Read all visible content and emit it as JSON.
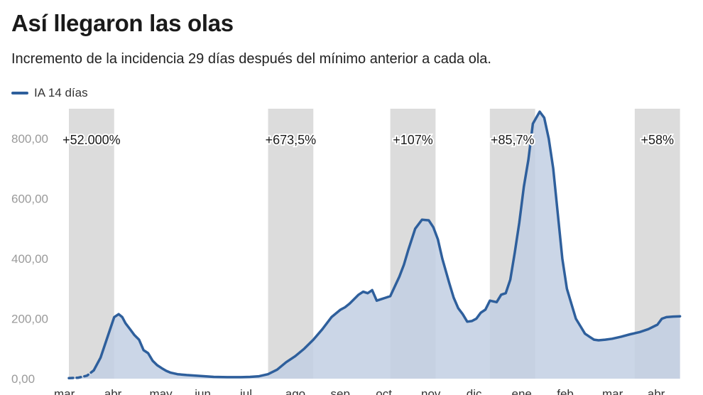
{
  "title": "Así llegaron las olas",
  "subtitle": "Incremento de la incidencia 29 días después del mínimo anterior a cada ola.",
  "colors": {
    "line": "#2e5f9c",
    "area": "#c2cfe3",
    "band": "#dcdcdc"
  },
  "chart_data": {
    "type": "area",
    "xlabel": "",
    "ylabel": "",
    "legend": [
      {
        "name": "IA 14 días",
        "position": "top-left"
      }
    ],
    "ylim": [
      0,
      900
    ],
    "yticks": [
      0,
      200,
      400,
      600,
      800
    ],
    "ytick_labels": [
      "0,00",
      "200,00",
      "400,00",
      "600,00",
      "800,00"
    ],
    "x_months": [
      "mar",
      "abr",
      "may",
      "jun",
      "jul",
      "ago",
      "sep",
      "oct",
      "nov",
      "dic",
      "ene",
      "feb",
      "mar",
      "abr"
    ],
    "grid": false,
    "waves": [
      {
        "start_month": 0.0,
        "end_month": 1.0,
        "label": "+52.000%"
      },
      {
        "start_month": 4.4,
        "end_month": 5.4,
        "label": "+673,5%"
      },
      {
        "start_month": 7.1,
        "end_month": 8.1,
        "label": "+107%"
      },
      {
        "start_month": 9.3,
        "end_month": 10.3,
        "label": "+85,7%"
      },
      {
        "start_month": 12.5,
        "end_month": 13.5,
        "label": "+58%"
      }
    ],
    "series": [
      {
        "name": "IA 14 días",
        "dashed_until_month": 0.45,
        "x_month": [
          0.0,
          0.2,
          0.4,
          0.55,
          0.7,
          0.8,
          0.9,
          1.0,
          1.1,
          1.18,
          1.25,
          1.35,
          1.45,
          1.55,
          1.65,
          1.75,
          1.85,
          1.95,
          2.05,
          2.15,
          2.25,
          2.4,
          2.6,
          2.8,
          3.0,
          3.2,
          3.5,
          3.8,
          4.0,
          4.2,
          4.4,
          4.6,
          4.8,
          5.0,
          5.2,
          5.4,
          5.6,
          5.8,
          6.0,
          6.1,
          6.2,
          6.3,
          6.4,
          6.5,
          6.6,
          6.7,
          6.8,
          6.9,
          7.0,
          7.1,
          7.3,
          7.4,
          7.5,
          7.65,
          7.8,
          7.95,
          8.05,
          8.15,
          8.25,
          8.4,
          8.5,
          8.6,
          8.7,
          8.8,
          8.9,
          9.0,
          9.1,
          9.2,
          9.3,
          9.45,
          9.55,
          9.65,
          9.75,
          9.85,
          9.95,
          10.05,
          10.15,
          10.25,
          10.4,
          10.5,
          10.6,
          10.7,
          10.8,
          10.9,
          11.0,
          11.1,
          11.2,
          11.3,
          11.4,
          11.5,
          11.6,
          11.7,
          11.85,
          12.0,
          12.2,
          12.4,
          12.6,
          12.8,
          13.0,
          13.1,
          13.2,
          13.35,
          13.5
        ],
        "y": [
          2,
          3,
          10,
          28,
          70,
          115,
          160,
          205,
          215,
          205,
          185,
          165,
          145,
          130,
          95,
          85,
          60,
          45,
          35,
          26,
          20,
          15,
          12,
          10,
          8,
          6,
          5,
          5,
          6,
          8,
          15,
          30,
          55,
          75,
          100,
          130,
          165,
          205,
          230,
          238,
          250,
          265,
          280,
          290,
          285,
          295,
          260,
          265,
          270,
          275,
          340,
          380,
          430,
          500,
          530,
          528,
          505,
          465,
          400,
          320,
          270,
          235,
          215,
          190,
          192,
          200,
          220,
          230,
          260,
          255,
          280,
          285,
          330,
          420,
          520,
          640,
          730,
          850,
          890,
          870,
          800,
          700,
          550,
          400,
          300,
          250,
          200,
          175,
          150,
          140,
          130,
          128,
          130,
          133,
          140,
          148,
          155,
          165,
          180,
          200,
          205,
          207,
          208
        ]
      }
    ]
  }
}
